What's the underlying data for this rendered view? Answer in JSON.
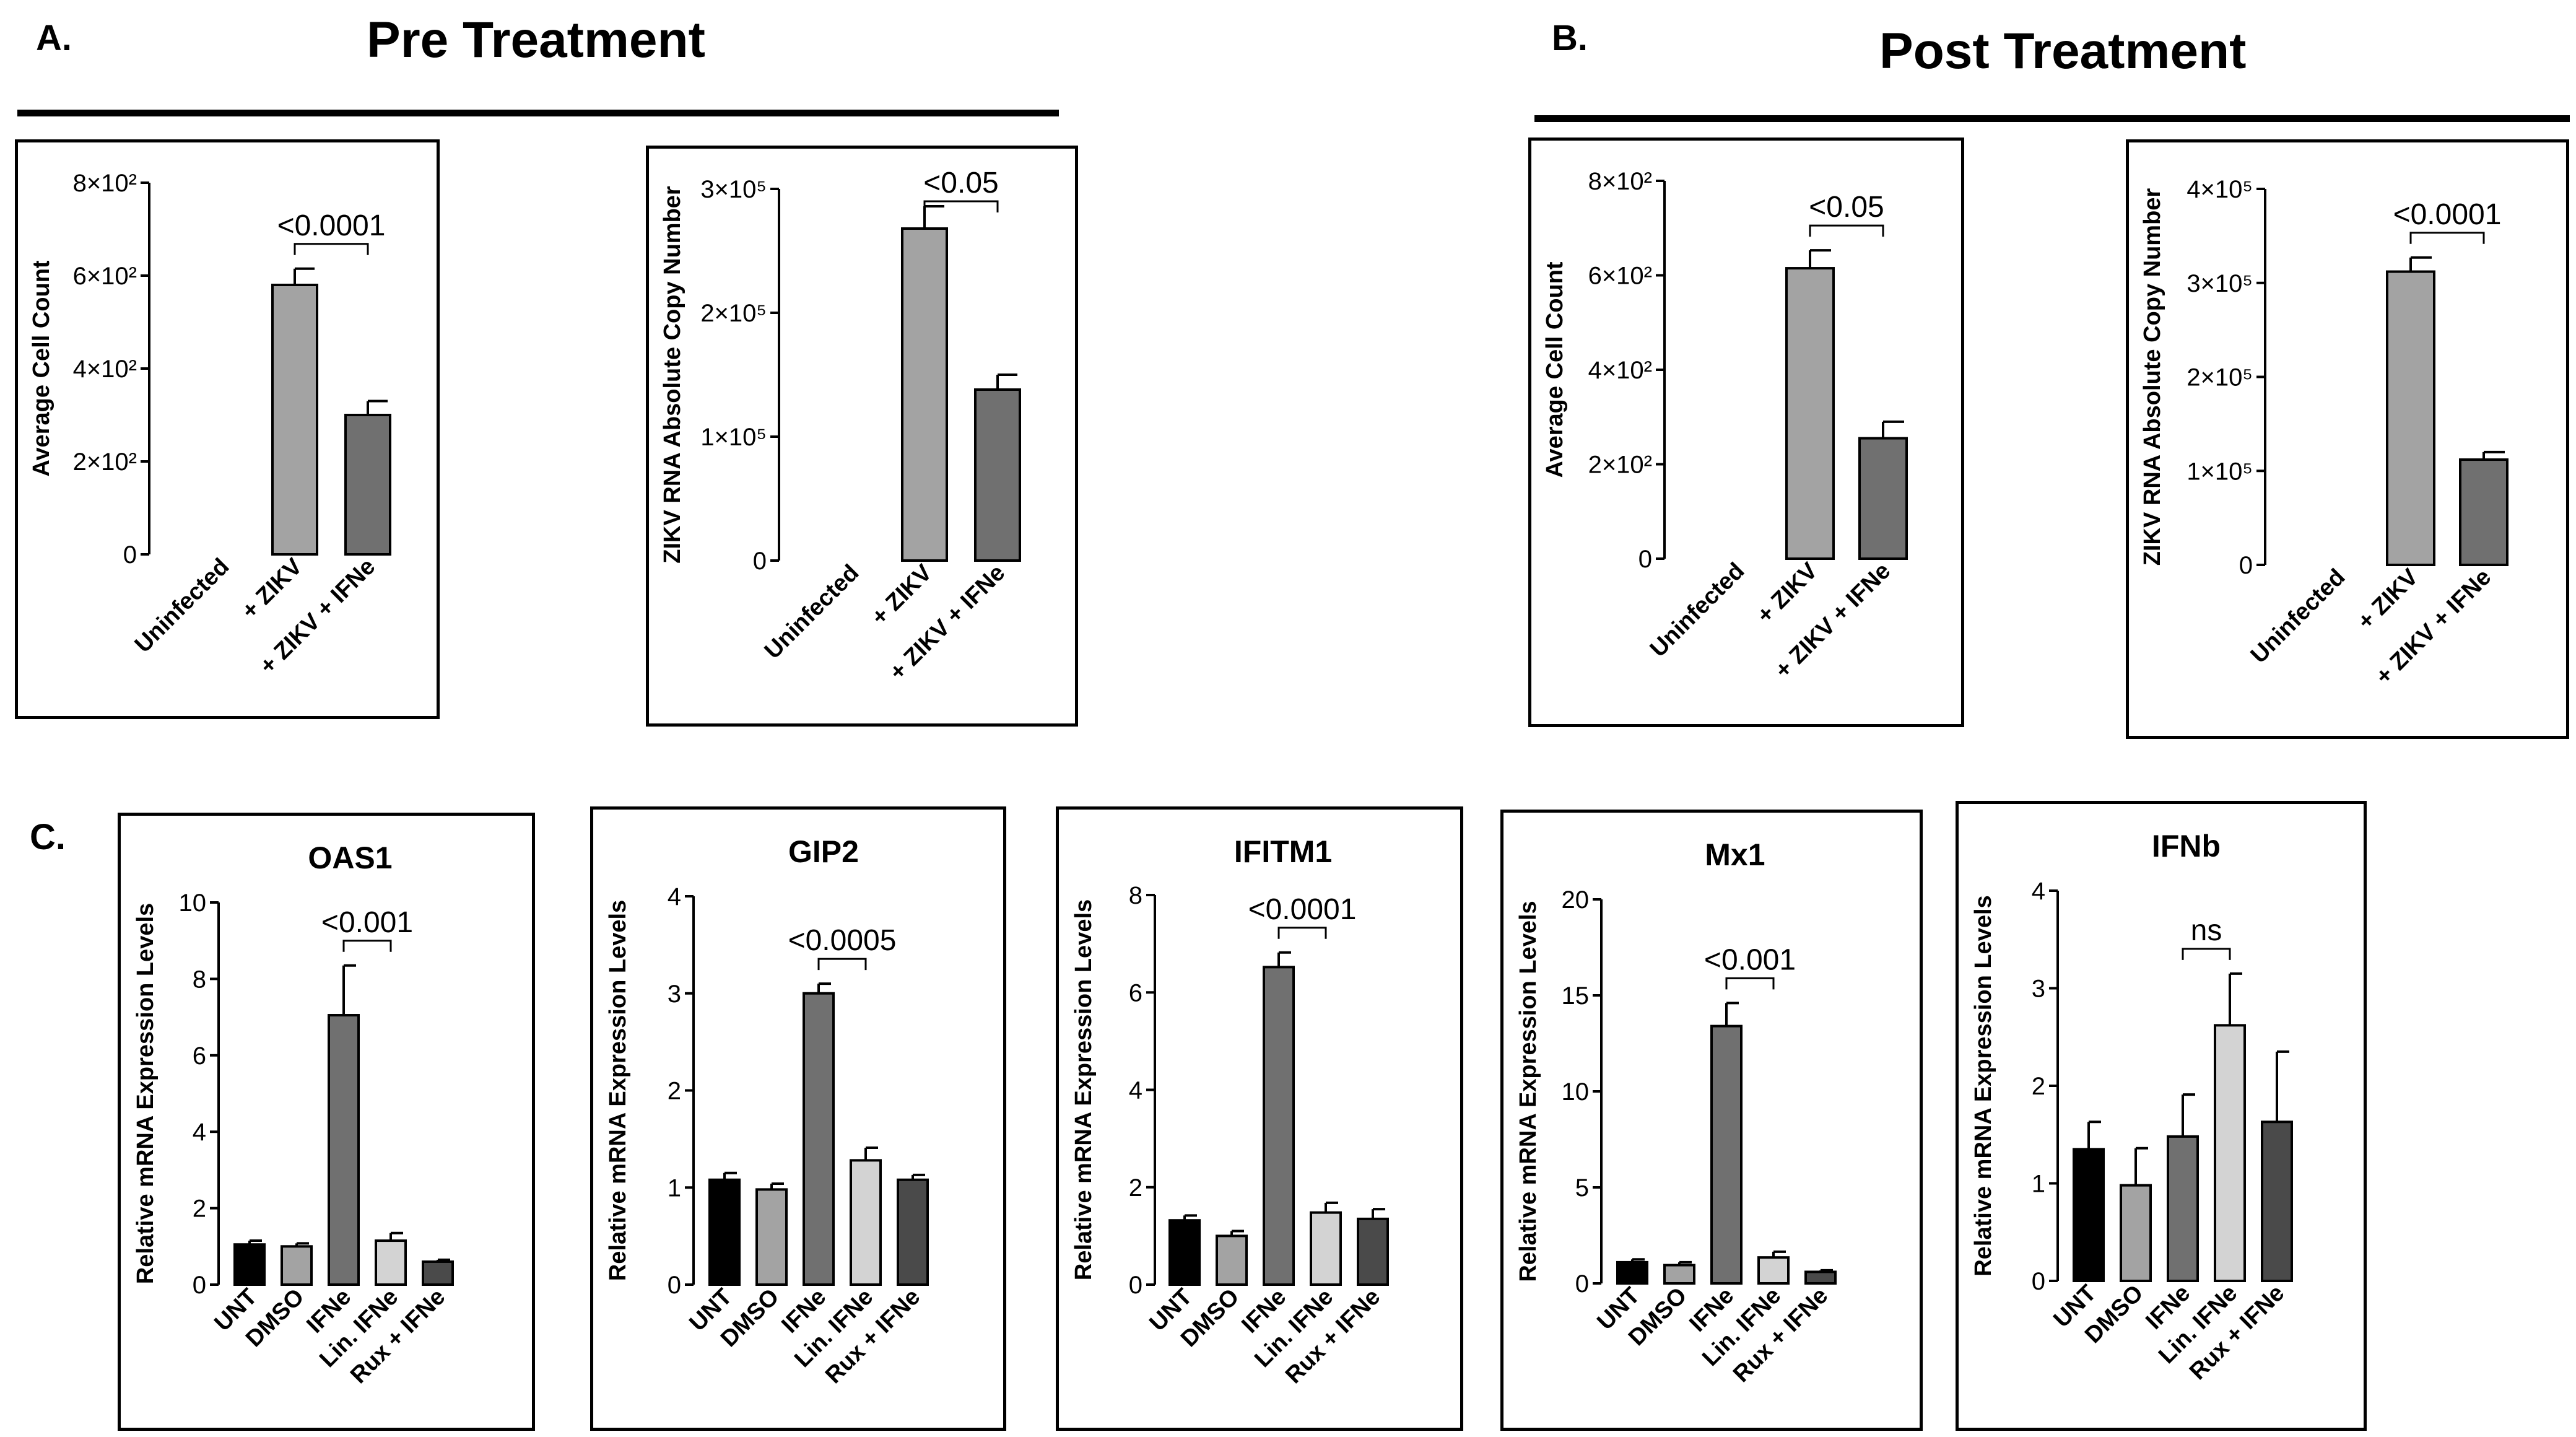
{
  "panels": {
    "A": {
      "letter": "A.",
      "title": "Pre Treatment",
      "charts": [
        {
          "id": "a1",
          "ylabel": "Average Cell Count",
          "ticks": [
            "0",
            "2×10²",
            "4×10²",
            "6×10²",
            "8×10²"
          ],
          "tickValues": [
            0,
            200,
            400,
            600,
            800
          ],
          "ymax": 800,
          "categories": [
            "Uninfected",
            "+ ZIKV",
            "+ ZIKV + IFNe"
          ],
          "values": [
            0,
            580,
            300
          ],
          "errors": [
            0,
            35,
            30
          ],
          "colors": [
            "#999999",
            "#a3a3a3",
            "#707070"
          ],
          "comparison": {
            "from": 1,
            "to": 2,
            "label": "<0.0001"
          }
        },
        {
          "id": "a2",
          "ylabel": "ZIKV RNA Absolute Copy Number",
          "ticks": [
            "0",
            "1×10⁵",
            "2×10⁵",
            "3×10⁵"
          ],
          "tickValues": [
            0,
            100000,
            200000,
            300000
          ],
          "ymax": 300000,
          "categories": [
            "Uninfected",
            "+ ZIKV",
            "+ ZIKV + IFNe"
          ],
          "values": [
            0,
            268000,
            138000
          ],
          "errors": [
            0,
            18000,
            12000
          ],
          "colors": [
            "#999999",
            "#a3a3a3",
            "#707070"
          ],
          "comparison": {
            "from": 1,
            "to": 2,
            "label": "<0.05"
          }
        }
      ]
    },
    "B": {
      "letter": "B.",
      "title": "Post Treatment",
      "charts": [
        {
          "id": "b1",
          "ylabel": "Average Cell Count",
          "ticks": [
            "0",
            "2×10²",
            "4×10²",
            "6×10²",
            "8×10²"
          ],
          "tickValues": [
            0,
            200,
            400,
            600,
            800
          ],
          "ymax": 800,
          "categories": [
            "Uninfected",
            "+ ZIKV",
            "+ ZIKV + IFNe"
          ],
          "values": [
            0,
            615,
            255
          ],
          "errors": [
            0,
            38,
            35
          ],
          "colors": [
            "#999999",
            "#a3a3a3",
            "#707070"
          ],
          "comparison": {
            "from": 1,
            "to": 2,
            "label": "<0.05"
          }
        },
        {
          "id": "b2",
          "ylabel": "ZIKV RNA Absolute Copy Number",
          "ticks": [
            "0",
            "1×10⁵",
            "2×10⁵",
            "3×10⁵",
            "4×10⁵"
          ],
          "tickValues": [
            0,
            100000,
            200000,
            300000,
            400000
          ],
          "ymax": 400000,
          "categories": [
            "Uninfected",
            "+ ZIKV",
            "+ ZIKV + IFNe"
          ],
          "values": [
            0,
            312000,
            112000
          ],
          "errors": [
            0,
            15000,
            8000
          ],
          "colors": [
            "#999999",
            "#a3a3a3",
            "#707070"
          ],
          "comparison": {
            "from": 1,
            "to": 2,
            "label": "<0.0001"
          }
        }
      ]
    },
    "C": {
      "letter": "C.",
      "charts": [
        {
          "id": "c1",
          "title": "OAS1",
          "ylabel": "Relative mRNA Expression Levels",
          "ticks": [
            "0",
            "2",
            "4",
            "6",
            "8",
            "10"
          ],
          "tickValues": [
            0,
            2,
            4,
            6,
            8,
            10
          ],
          "ymax": 10,
          "categories": [
            "UNT",
            "DMSO",
            "IFNe",
            "Lin. IFNe",
            "Rux + IFNe"
          ],
          "values": [
            1.05,
            1.0,
            7.05,
            1.15,
            0.6
          ],
          "errors": [
            0.1,
            0.08,
            1.3,
            0.2,
            0.05
          ],
          "colors": [
            "#000000",
            "#a3a3a3",
            "#707070",
            "#d3d3d3",
            "#4a4a4a"
          ],
          "comparison": {
            "from": 2,
            "to": 3,
            "label": "<0.001"
          }
        },
        {
          "id": "c2",
          "title": "GIP2",
          "ylabel": "Relative mRNA Expression Levels",
          "ticks": [
            "0",
            "1",
            "2",
            "3",
            "4"
          ],
          "tickValues": [
            0,
            1,
            2,
            3,
            4
          ],
          "ymax": 4,
          "categories": [
            "UNT",
            "DMSO",
            "IFNe",
            "Lin. IFNe",
            "Rux + IFNe"
          ],
          "values": [
            1.08,
            0.98,
            3.0,
            1.28,
            1.08
          ],
          "errors": [
            0.07,
            0.06,
            0.1,
            0.13,
            0.05
          ],
          "colors": [
            "#000000",
            "#a3a3a3",
            "#707070",
            "#d3d3d3",
            "#4a4a4a"
          ],
          "comparison": {
            "from": 2,
            "to": 3,
            "label": "<0.0005"
          }
        },
        {
          "id": "c3",
          "title": "IFITM1",
          "ylabel": "Relative mRNA Expression Levels",
          "ticks": [
            "0",
            "2",
            "4",
            "6",
            "8"
          ],
          "tickValues": [
            0,
            2,
            4,
            6,
            8
          ],
          "ymax": 8,
          "categories": [
            "UNT",
            "DMSO",
            "IFNe",
            "Lin. IFNe",
            "Rux + IFNe"
          ],
          "values": [
            1.32,
            1.0,
            6.52,
            1.48,
            1.35
          ],
          "errors": [
            0.1,
            0.1,
            0.3,
            0.2,
            0.2
          ],
          "colors": [
            "#000000",
            "#a3a3a3",
            "#707070",
            "#d3d3d3",
            "#4a4a4a"
          ],
          "comparison": {
            "from": 2,
            "to": 3,
            "label": "<0.0001"
          }
        },
        {
          "id": "c4",
          "title": "Mx1",
          "ylabel": "Relative mRNA Expression Levels",
          "ticks": [
            "0",
            "5",
            "10",
            "15",
            "20"
          ],
          "tickValues": [
            0,
            5,
            10,
            15,
            20
          ],
          "ymax": 20,
          "categories": [
            "UNT",
            "DMSO",
            "IFNe",
            "Lin. IFNe",
            "Rux + IFNe"
          ],
          "values": [
            1.1,
            0.95,
            13.4,
            1.35,
            0.6
          ],
          "errors": [
            0.15,
            0.15,
            1.2,
            0.3,
            0.08
          ],
          "colors": [
            "#000000",
            "#a3a3a3",
            "#707070",
            "#d3d3d3",
            "#4a4a4a"
          ],
          "comparison": {
            "from": 2,
            "to": 3,
            "label": "<0.001"
          }
        },
        {
          "id": "c5",
          "title": "IFNb",
          "ylabel": "Relative mRNA Expression Levels",
          "ticks": [
            "0",
            "1",
            "2",
            "3",
            "4"
          ],
          "tickValues": [
            0,
            1,
            2,
            3,
            4
          ],
          "ymax": 4,
          "categories": [
            "UNT",
            "DMSO",
            "IFNe",
            "Lin. IFNe",
            "Rux + IFNe"
          ],
          "values": [
            1.35,
            0.98,
            1.48,
            2.62,
            1.63
          ],
          "errors": [
            0.28,
            0.38,
            0.43,
            0.53,
            0.72
          ],
          "colors": [
            "#000000",
            "#a3a3a3",
            "#707070",
            "#d3d3d3",
            "#4a4a4a"
          ],
          "comparison": {
            "from": 2,
            "to": 3,
            "label": "ns"
          }
        }
      ]
    }
  }
}
